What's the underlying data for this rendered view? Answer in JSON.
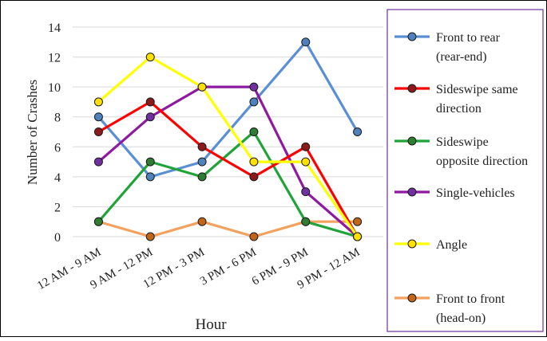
{
  "chart_data": {
    "type": "line",
    "xlabel": "Hour",
    "ylabel": "Number of Crashes",
    "ylim": [
      0,
      14
    ],
    "yticks": [
      0,
      2,
      4,
      6,
      8,
      10,
      12,
      14
    ],
    "grid": "horizontal",
    "legend_position": "right",
    "categories": [
      "12 AM - 9 AM",
      "9 AM - 12 PM",
      "12 PM - 3 PM",
      "3 PM - 6 PM",
      "6 PM - 9 PM",
      "9 PM - 12 AM"
    ],
    "series": [
      {
        "name": "Front to rear (rear-end)",
        "legend_lines": [
          "Front to rear",
          "(rear-end)"
        ],
        "color": "#5B8FD4",
        "values": [
          8,
          4,
          5,
          9,
          13,
          7
        ]
      },
      {
        "name": "Sideswipe same direction",
        "legend_lines": [
          "Sideswipe same",
          "direction"
        ],
        "color": "#FF0000",
        "values": [
          7,
          9,
          6,
          4,
          6,
          0
        ]
      },
      {
        "name": "Sideswipe opposite direction",
        "legend_lines": [
          "Sideswipe",
          "opposite direction"
        ],
        "color": "#22A33A",
        "values": [
          1,
          5,
          4,
          7,
          1,
          0
        ]
      },
      {
        "name": "Single-vehicles",
        "legend_lines": [
          "Single-vehicles"
        ],
        "color": "#8E1AA0",
        "values": [
          5,
          8,
          10,
          10,
          3,
          0
        ]
      },
      {
        "name": "Angle",
        "legend_lines": [
          "Angle"
        ],
        "color": "#FFFF00",
        "values": [
          9,
          12,
          10,
          5,
          5,
          0
        ]
      },
      {
        "name": "Front to front (head-on)",
        "legend_lines": [
          "Front to front",
          "(head-on)"
        ],
        "color": "#F4A15D",
        "values": [
          1,
          0,
          1,
          0,
          1,
          1
        ]
      }
    ],
    "marker_fills": [
      "#4F81BD",
      "#8B1A1A",
      "#2E7D32",
      "#7030A0",
      "#FFE000",
      "#C0661A"
    ]
  }
}
